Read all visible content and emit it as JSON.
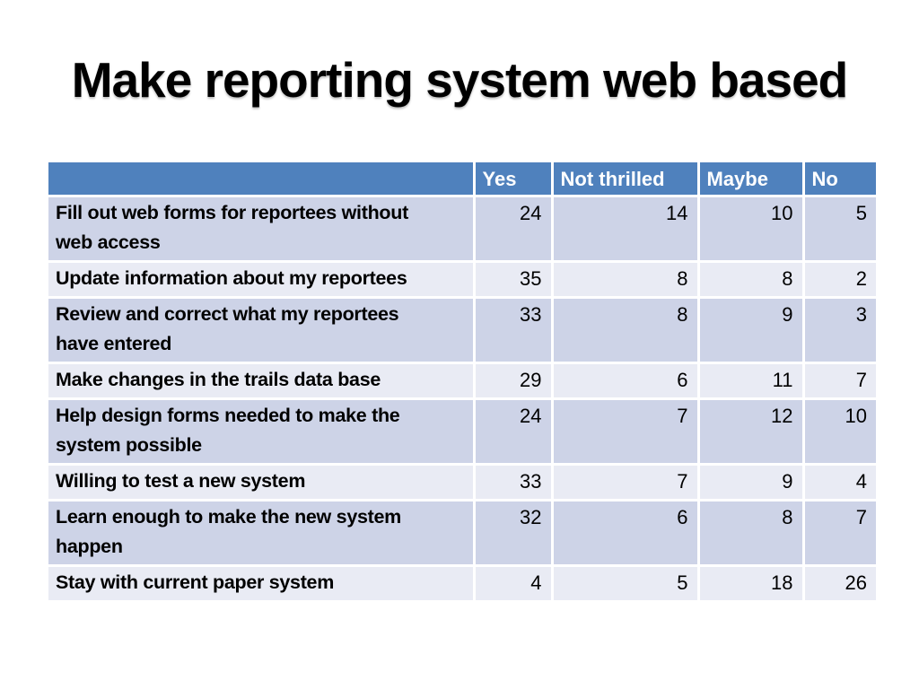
{
  "slide": {
    "background": "#ffffff",
    "title": "Make reporting system web based"
  },
  "table": {
    "columns": [
      "Yes",
      "Not thrilled",
      "Maybe",
      "No"
    ],
    "rows": [
      {
        "question": "Fill out web forms for reportees without\nweb access",
        "values": [
          24,
          14,
          10,
          5
        ]
      },
      {
        "question": "Update information about my reportees",
        "values": [
          35,
          8,
          8,
          2
        ]
      },
      {
        "question": "Review and correct what my reportees\nhave entered",
        "values": [
          33,
          8,
          9,
          3
        ]
      },
      {
        "question": "Make changes in the trails data base",
        "values": [
          29,
          6,
          11,
          7
        ]
      },
      {
        "question": "Help design forms needed to make the\nsystem possible",
        "values": [
          24,
          7,
          12,
          10
        ]
      },
      {
        "question": "Willing to test a new system",
        "values": [
          33,
          7,
          9,
          4
        ]
      },
      {
        "question": "Learn enough to make the new system\nhappen",
        "values": [
          32,
          6,
          8,
          7
        ]
      },
      {
        "question": "Stay with current paper system",
        "values": [
          4,
          5,
          18,
          26
        ]
      }
    ],
    "colors": {
      "header_bg": "#4f81bd",
      "header_text": "#ffffff",
      "band_dark": "#cdd3e7",
      "band_light": "#e9ebf4",
      "gridline": "#ffffff",
      "text": "#000000"
    }
  },
  "chart_data": {
    "type": "table",
    "title": "Make reporting system web based",
    "categories": [
      "Fill out web forms for reportees without web access",
      "Update information about my reportees",
      "Review and correct what my reportees have entered",
      "Make changes in the trails data base",
      "Help design forms needed to make the system possible",
      "Willing to test a new system",
      "Learn enough to make the new system happen",
      "Stay with current paper system"
    ],
    "series": [
      {
        "name": "Yes",
        "values": [
          24,
          35,
          33,
          29,
          24,
          33,
          32,
          4
        ]
      },
      {
        "name": "Not thrilled",
        "values": [
          14,
          8,
          8,
          6,
          7,
          7,
          6,
          5
        ]
      },
      {
        "name": "Maybe",
        "values": [
          10,
          8,
          9,
          11,
          12,
          9,
          8,
          18
        ]
      },
      {
        "name": "No",
        "values": [
          5,
          2,
          3,
          7,
          10,
          4,
          7,
          26
        ]
      }
    ]
  }
}
